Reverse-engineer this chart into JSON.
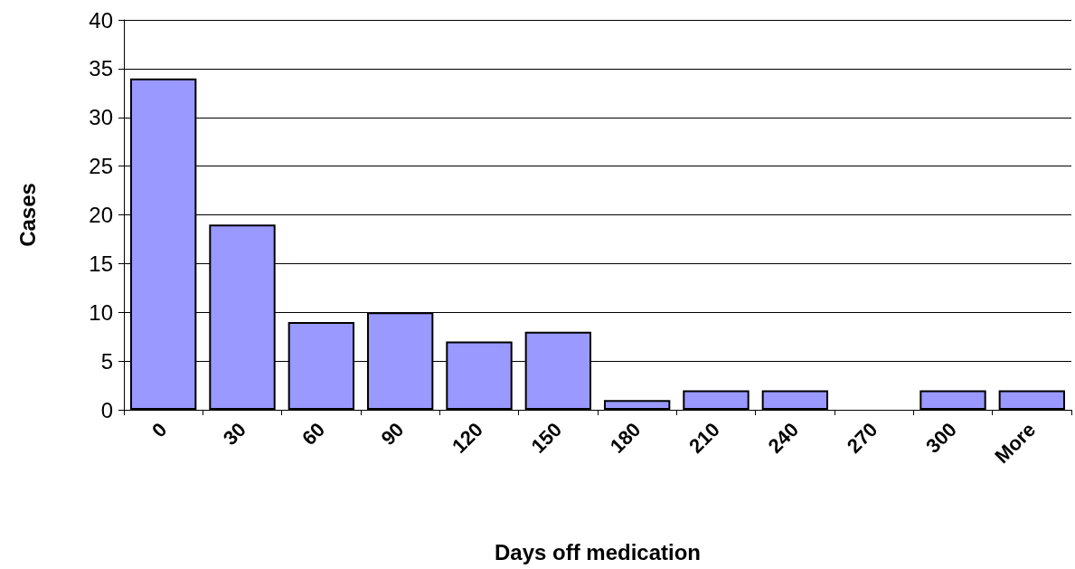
{
  "chart_data": {
    "type": "bar",
    "xlabel": "Days off medication",
    "ylabel": "Cases",
    "categories": [
      "0",
      "30",
      "60",
      "90",
      "120",
      "150",
      "180",
      "210",
      "240",
      "270",
      "300",
      "More"
    ],
    "values": [
      34,
      19,
      9,
      10,
      7,
      8,
      1,
      2,
      2,
      0,
      2,
      2
    ],
    "color": "#9999ff",
    "ylim": [
      0,
      40
    ],
    "yticks": [
      0,
      5,
      10,
      15,
      20,
      25,
      30,
      35,
      40
    ],
    "grid": "y"
  }
}
